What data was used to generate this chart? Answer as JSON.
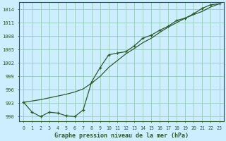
{
  "title": "Graphe pression niveau de la mer (hPa)",
  "bg_color": "#cceeff",
  "grid_color": "#99ccbb",
  "line_color": "#2d5a2d",
  "x_labels": [
    "0",
    "1",
    "2",
    "3",
    "4",
    "5",
    "6",
    "7",
    "8",
    "9",
    "10",
    "11",
    "12",
    "13",
    "14",
    "15",
    "16",
    "17",
    "18",
    "19",
    "20",
    "21",
    "22",
    "23"
  ],
  "ylim": [
    989,
    1015.5
  ],
  "yticks": [
    990,
    993,
    996,
    999,
    1002,
    1005,
    1008,
    1011,
    1014
  ],
  "smooth_x": [
    0,
    1,
    2,
    3,
    4,
    5,
    6,
    7,
    8,
    9,
    10,
    11,
    12,
    13,
    14,
    15,
    16,
    17,
    18,
    19,
    20,
    21,
    22,
    23
  ],
  "smooth_y": [
    993.2,
    993.5,
    993.8,
    994.2,
    994.6,
    995.0,
    995.5,
    996.2,
    997.5,
    999.0,
    1001.0,
    1002.5,
    1004.0,
    1005.2,
    1006.5,
    1007.5,
    1008.8,
    1010.0,
    1011.0,
    1012.0,
    1012.8,
    1013.5,
    1014.5,
    1015.2
  ],
  "marker_x": [
    0,
    1,
    2,
    3,
    4,
    5,
    6,
    7,
    8,
    9,
    10,
    11,
    12,
    13,
    14,
    15,
    16,
    17,
    18,
    19,
    20,
    21,
    22,
    23
  ],
  "marker_y": [
    993.2,
    991.0,
    990.0,
    991.0,
    990.8,
    990.2,
    990.0,
    991.5,
    997.8,
    1001.0,
    1003.8,
    1004.2,
    1004.5,
    1005.8,
    1007.5,
    1008.2,
    1009.3,
    1010.2,
    1011.5,
    1012.0,
    1013.0,
    1014.2,
    1015.0,
    1015.2
  ]
}
